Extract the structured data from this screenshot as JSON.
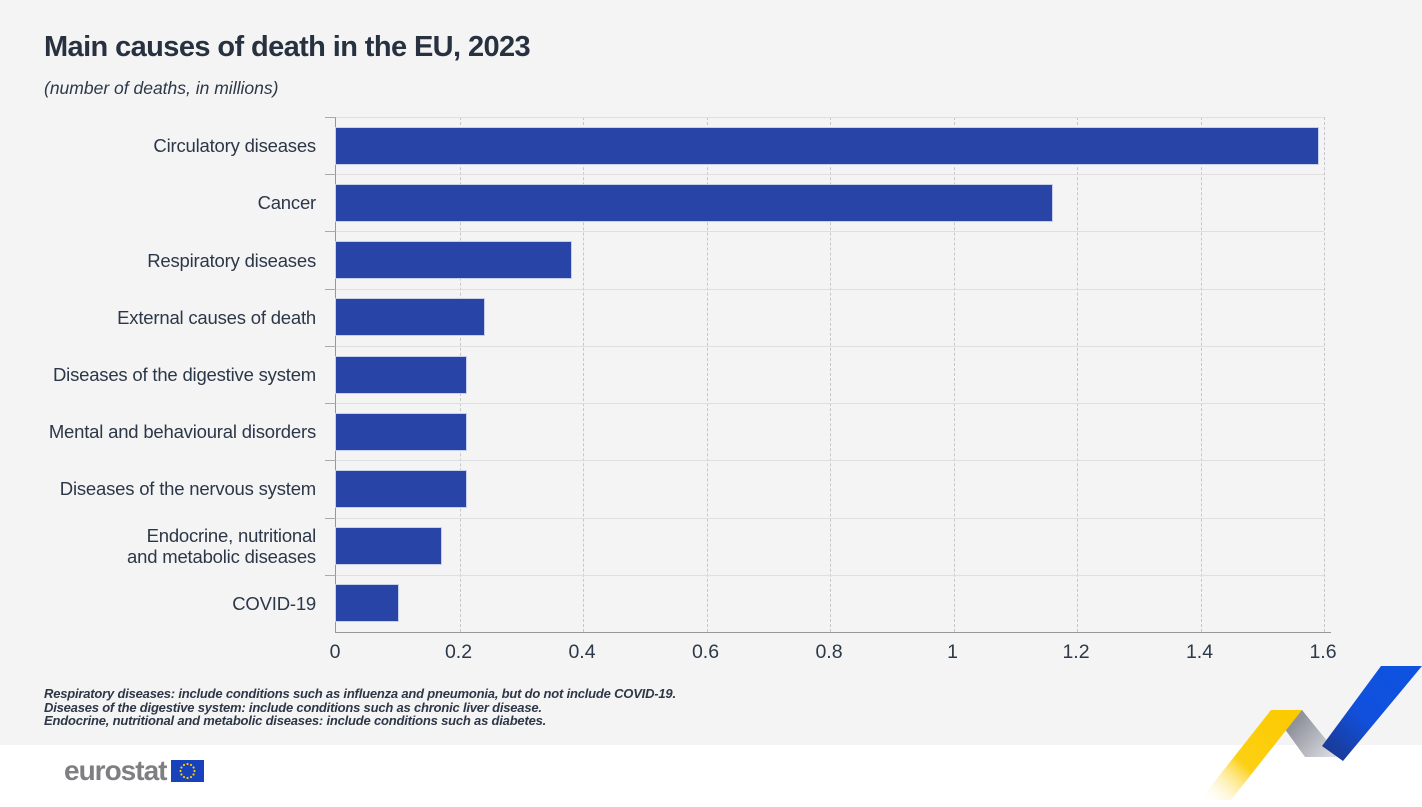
{
  "page": {
    "background_color": "#f4f4f5",
    "title": "Main causes of death in the EU, 2023",
    "subtitle": "(number of deaths, in millions)"
  },
  "chart_data": {
    "type": "bar",
    "orientation": "horizontal",
    "title": "Main causes of death in the EU, 2023",
    "subtitle": "(number of deaths, in millions)",
    "categories": [
      "Circulatory diseases",
      "Cancer",
      "Respiratory diseases",
      "External causes of death",
      "Diseases of the digestive system",
      "Mental and behavioural disorders",
      "Diseases of the nervous system",
      "Endocrine, nutritional\nand metabolic diseases",
      "COVID-19"
    ],
    "values": [
      1.59,
      1.16,
      0.38,
      0.24,
      0.21,
      0.21,
      0.21,
      0.17,
      0.1
    ],
    "xlabel": "",
    "ylabel": "",
    "xlim": [
      0,
      1.6
    ],
    "x_tick_labels": [
      "0",
      "0.2",
      "0.4",
      "0.6",
      "0.8",
      "1",
      "1.2",
      "1.4",
      "1.6"
    ],
    "grid": "vertical dashed gridlines, horizontal row separators",
    "legend": "none",
    "bar_color": "#2744a6"
  },
  "footnotes": [
    "Respiratory diseases: include conditions such as influenza and pneumonia, but do not include COVID-19.",
    "Diseases of the digestive system: include conditions such as chronic liver disease.",
    "Endocrine, nutritional and metabolic diseases: include conditions such as diabetes."
  ],
  "branding": {
    "logo_text": "eurostat",
    "flag_icon": "eu-flag-icon",
    "logo_gray": "#7f7f83",
    "flag_blue": "#1742bc",
    "star_yellow": "#ffcc00"
  },
  "decoration": {
    "name": "zigzag-trend-graphic",
    "yellow": "#fccf06",
    "gray": "#9da0a9",
    "blue": "#1150dd"
  }
}
